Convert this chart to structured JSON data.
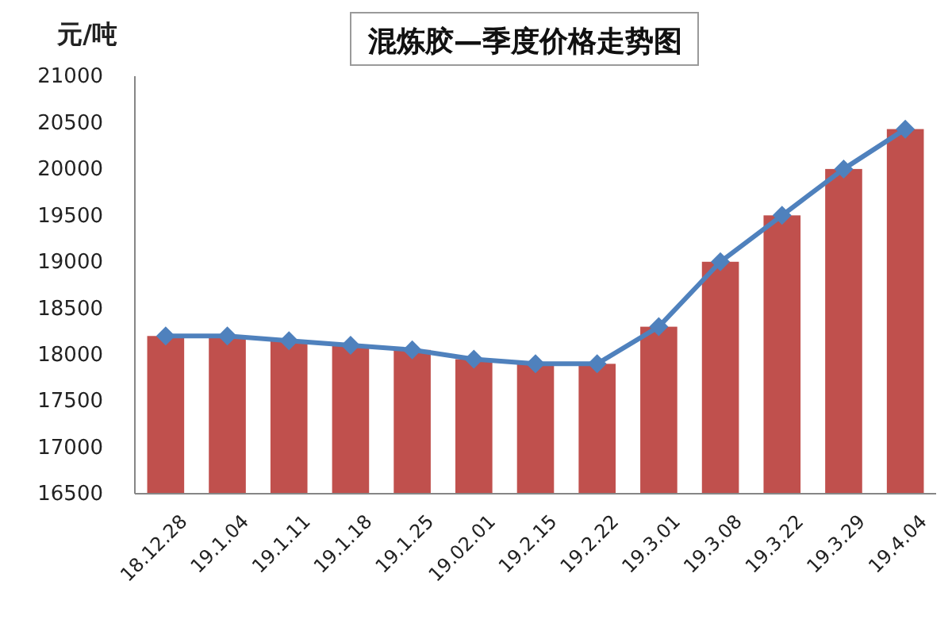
{
  "chart_data": {
    "type": "bar",
    "title": "混炼胶—季度价格走势图",
    "ylabel": "元/吨",
    "categories": [
      "18.12.28",
      "19.1.04",
      "19.1.11",
      "19.1.18",
      "19.1.25",
      "19.02.01",
      "19.2.15",
      "19.2.22",
      "19.3.01",
      "19.3.08",
      "19.3.22",
      "19.3.29",
      "19.4.04"
    ],
    "series": [
      {
        "color": "#c0504d",
        "values": [
          18200,
          18200,
          18150,
          18100,
          18050,
          17950,
          17900,
          17900,
          18300,
          19000,
          19500,
          20000,
          20430
        ]
      },
      {
        "type": "line",
        "color": "#4f81bd",
        "values": [
          18200,
          18200,
          18150,
          18100,
          18050,
          17950,
          17900,
          17900,
          18300,
          19000,
          19500,
          20000,
          20430
        ]
      }
    ],
    "marker": "diamond",
    "line_style": "solid",
    "ylim": [
      16500,
      21000
    ],
    "yticks": [
      16500,
      17000,
      17500,
      18000,
      18500,
      19000,
      19500,
      20000,
      20500,
      21000
    ]
  }
}
